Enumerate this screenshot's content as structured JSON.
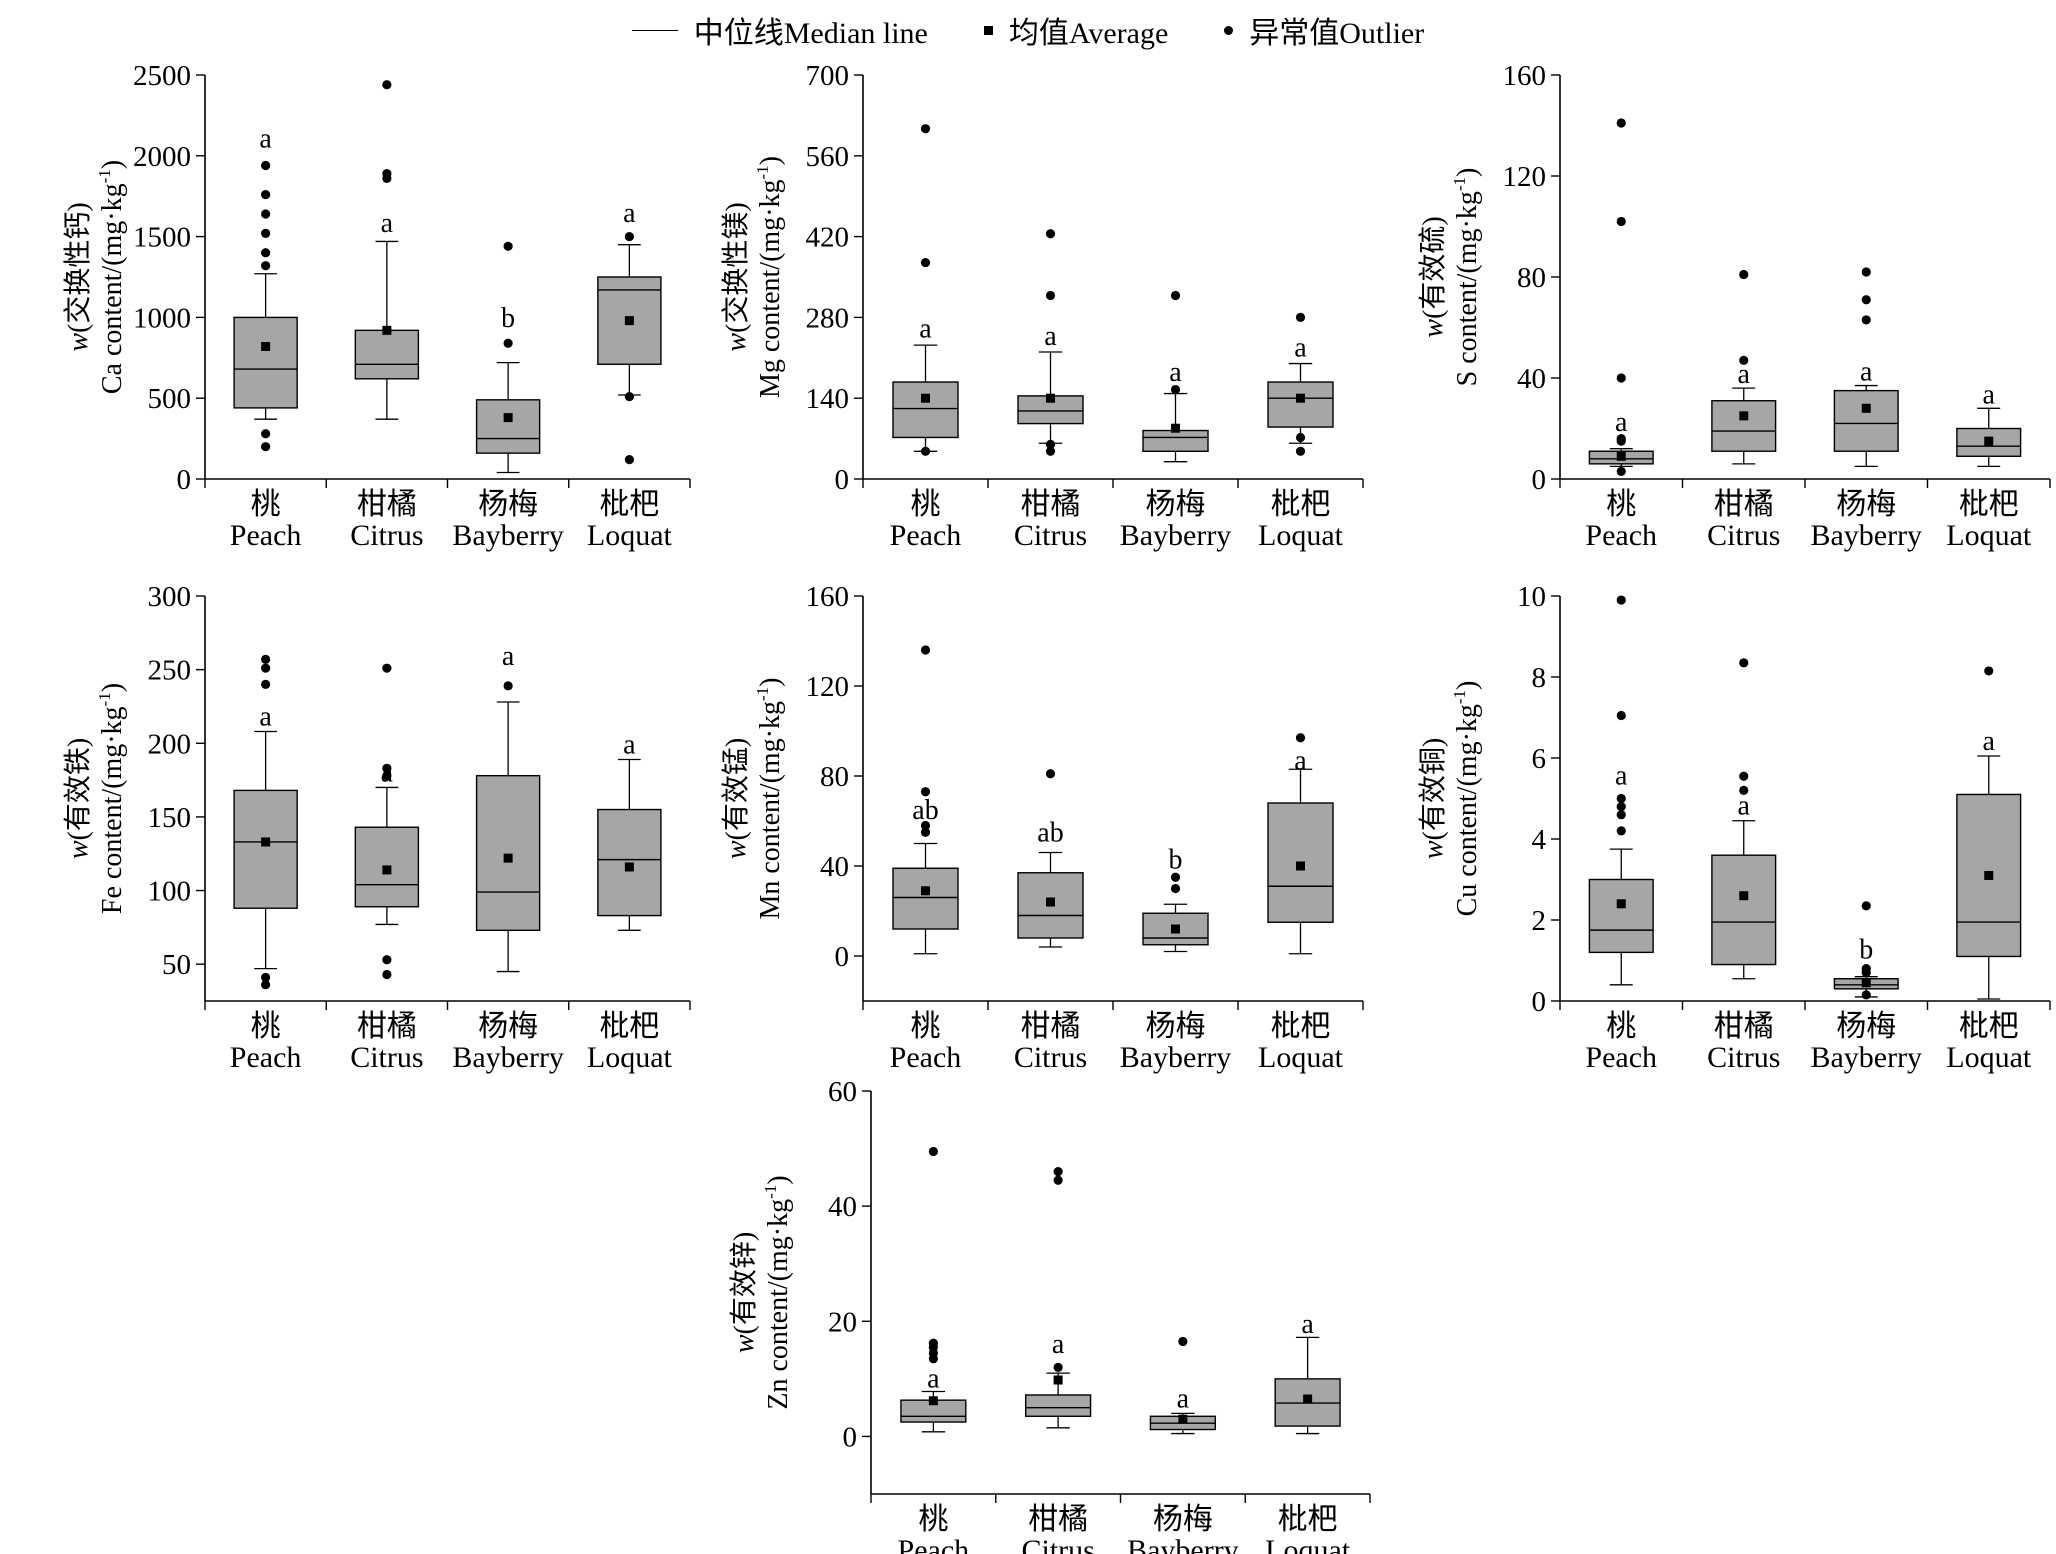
{
  "legend": {
    "median_label": "中位线Median line",
    "average_label": "均值Average",
    "outlier_label": "异常值Outlier"
  },
  "colors": {
    "box_fill": "#a6a6a6",
    "stroke": "#000000",
    "background": "#ffffff"
  },
  "chart_data": [
    {
      "type": "boxplot",
      "ylabel": "w(交换性钙) Ca content/(mg·kg⁻¹)",
      "ylabel_line1_italic": "w",
      "ylabel_line1": "(交换性钙)",
      "ylabel_line2": "Ca content/(mg·kg",
      "ylabel_sup": "-1",
      "ylabel_close": ")",
      "ylim": [
        0,
        2500
      ],
      "yticks": [
        0,
        500,
        1000,
        1500,
        2000,
        2500
      ],
      "ytick_labels": [
        "0",
        "500",
        "1000",
        "1500",
        "2000",
        "2500"
      ],
      "categories": [
        {
          "cn": "桃",
          "en": "Peach"
        },
        {
          "cn": "柑橘",
          "en": "Citrus"
        },
        {
          "cn": "杨梅",
          "en": "Bayberry"
        },
        {
          "cn": "枇杷",
          "en": "Loquat"
        }
      ],
      "boxes": [
        {
          "whisker_low": 370,
          "q1": 440,
          "median": 680,
          "q3": 1000,
          "whisker_high": 1270,
          "mean": 820,
          "outliers": [
            200,
            280,
            1320,
            1400,
            1520,
            1640,
            1760,
            1940
          ],
          "letter": "a",
          "letter_y": 2050
        },
        {
          "whisker_low": 370,
          "q1": 620,
          "median": 710,
          "q3": 920,
          "whisker_high": 1470,
          "mean": 920,
          "outliers": [
            1860,
            1890,
            2440
          ],
          "letter": "a",
          "letter_y": 1530
        },
        {
          "whisker_low": 40,
          "q1": 160,
          "median": 250,
          "q3": 490,
          "whisker_high": 720,
          "mean": 380,
          "outliers": [
            840,
            1440
          ],
          "letter": "b",
          "letter_y": 940
        },
        {
          "whisker_low": 520,
          "q1": 710,
          "median": 1170,
          "q3": 1250,
          "whisker_high": 1450,
          "mean": 980,
          "outliers": [
            120,
            510,
            1500
          ],
          "letter": "a",
          "letter_y": 1590
        }
      ]
    },
    {
      "type": "boxplot",
      "ylabel": "w(交换性镁) Mg content/(mg·kg⁻¹)",
      "ylabel_line1_italic": "w",
      "ylabel_line1": "(交换性镁)",
      "ylabel_line2": "Mg content/(mg·kg",
      "ylabel_sup": "-1",
      "ylabel_close": ")",
      "ylim": [
        0,
        700
      ],
      "yticks": [
        0,
        140,
        280,
        420,
        560,
        700
      ],
      "ytick_labels": [
        "0",
        "140",
        "280",
        "420",
        "560",
        "700"
      ],
      "categories": [
        {
          "cn": "桃",
          "en": "Peach"
        },
        {
          "cn": "柑橘",
          "en": "Citrus"
        },
        {
          "cn": "杨梅",
          "en": "Bayberry"
        },
        {
          "cn": "枇杷",
          "en": "Loquat"
        }
      ],
      "boxes": [
        {
          "whisker_low": 48,
          "q1": 72,
          "median": 122,
          "q3": 168,
          "whisker_high": 232,
          "mean": 140,
          "outliers": [
            48,
            375,
            607
          ],
          "letter": "a",
          "letter_y": 245
        },
        {
          "whisker_low": 62,
          "q1": 96,
          "median": 118,
          "q3": 144,
          "whisker_high": 220,
          "mean": 140,
          "outliers": [
            48,
            60,
            318,
            425
          ],
          "letter": "a",
          "letter_y": 232
        },
        {
          "whisker_low": 30,
          "q1": 48,
          "median": 72,
          "q3": 84,
          "whisker_high": 148,
          "mean": 88,
          "outliers": [
            155,
            318
          ],
          "letter": "a",
          "letter_y": 170
        },
        {
          "whisker_low": 62,
          "q1": 90,
          "median": 140,
          "q3": 168,
          "whisker_high": 200,
          "mean": 140,
          "outliers": [
            48,
            72,
            280
          ],
          "letter": "a",
          "letter_y": 212
        }
      ]
    },
    {
      "type": "boxplot",
      "ylabel": "w(有效硫) S content/(mg·kg⁻¹)",
      "ylabel_line1_italic": "w",
      "ylabel_line1": "(有效硫)",
      "ylabel_line2": "S content/(mg·kg",
      "ylabel_sup": "-1",
      "ylabel_close": ")",
      "ylim": [
        0,
        160
      ],
      "yticks": [
        0,
        40,
        80,
        120,
        160
      ],
      "ytick_labels": [
        "0",
        "40",
        "80",
        "120",
        "160"
      ],
      "categories": [
        {
          "cn": "桃",
          "en": "Peach"
        },
        {
          "cn": "柑橘",
          "en": "Citrus"
        },
        {
          "cn": "杨梅",
          "en": "Bayberry"
        },
        {
          "cn": "枇杷",
          "en": "Loquat"
        }
      ],
      "boxes": [
        {
          "whisker_low": 5,
          "q1": 6,
          "median": 8,
          "q3": 11,
          "whisker_high": 12,
          "mean": 9,
          "outliers": [
            3,
            15,
            16,
            40,
            102,
            141
          ],
          "letter": "a",
          "letter_y": 19
        },
        {
          "whisker_low": 6,
          "q1": 11,
          "median": 19,
          "q3": 31,
          "whisker_high": 36,
          "mean": 25,
          "outliers": [
            47,
            81
          ],
          "letter": "a",
          "letter_y": 38
        },
        {
          "whisker_low": 5,
          "q1": 11,
          "median": 22,
          "q3": 35,
          "whisker_high": 37,
          "mean": 28,
          "outliers": [
            63,
            71,
            82
          ],
          "letter": "a",
          "letter_y": 39
        },
        {
          "whisker_low": 5,
          "q1": 9,
          "median": 13,
          "q3": 20,
          "whisker_high": 28,
          "mean": 15,
          "outliers": [],
          "letter": "a",
          "letter_y": 30
        }
      ]
    },
    {
      "type": "boxplot",
      "ylabel": "w(有效铁) Fe content/(mg·kg⁻¹)",
      "ylabel_line1_italic": "w",
      "ylabel_line1": "(有效铁)",
      "ylabel_line2": "Fe content/(mg·kg",
      "ylabel_sup": "-1",
      "ylabel_close": ")",
      "ylim": [
        25,
        300
      ],
      "yticks": [
        50,
        100,
        150,
        200,
        250,
        300
      ],
      "ytick_labels": [
        "50",
        "100",
        "150",
        "200",
        "250",
        "300"
      ],
      "categories": [
        {
          "cn": "桃",
          "en": "Peach"
        },
        {
          "cn": "柑橘",
          "en": "Citrus"
        },
        {
          "cn": "杨梅",
          "en": "Bayberry"
        },
        {
          "cn": "枇杷",
          "en": "Loquat"
        }
      ],
      "boxes": [
        {
          "whisker_low": 47,
          "q1": 88,
          "median": 133,
          "q3": 168,
          "whisker_high": 208,
          "mean": 133,
          "outliers": [
            36,
            41,
            240,
            251,
            257
          ],
          "letter": "a",
          "letter_y": 212
        },
        {
          "whisker_low": 77,
          "q1": 89,
          "median": 104,
          "q3": 143,
          "whisker_high": 170,
          "mean": 114,
          "outliers": [
            43,
            53,
            178,
            183,
            251
          ],
          "letter": "a",
          "letter_y": 174
        },
        {
          "whisker_low": 45,
          "q1": 73,
          "median": 99,
          "q3": 178,
          "whisker_high": 228,
          "mean": 122,
          "outliers": [
            239
          ],
          "letter": "a",
          "letter_y": 253
        },
        {
          "whisker_low": 73,
          "q1": 83,
          "median": 121,
          "q3": 155,
          "whisker_high": 189,
          "mean": 116,
          "outliers": [],
          "letter": "a",
          "letter_y": 193
        }
      ]
    },
    {
      "type": "boxplot",
      "ylabel": "w(有效锰) Mn content/(mg·kg⁻¹)",
      "ylabel_line1_italic": "w",
      "ylabel_line1": "(有效锰)",
      "ylabel_line2": "Mn content/(mg·kg",
      "ylabel_sup": "-1",
      "ylabel_close": ")",
      "ylim": [
        -20,
        160
      ],
      "yticks": [
        0,
        40,
        80,
        120,
        160
      ],
      "ytick_labels": [
        "0",
        "40",
        "80",
        "120",
        "160"
      ],
      "categories": [
        {
          "cn": "桃",
          "en": "Peach"
        },
        {
          "cn": "柑橘",
          "en": "Citrus"
        },
        {
          "cn": "杨梅",
          "en": "Bayberry"
        },
        {
          "cn": "枇杷",
          "en": "Loquat"
        }
      ],
      "boxes": [
        {
          "whisker_low": 1,
          "q1": 12,
          "median": 26,
          "q3": 39,
          "whisker_high": 50,
          "mean": 29,
          "outliers": [
            55,
            58,
            73,
            136
          ],
          "letter": "ab",
          "letter_y": 61
        },
        {
          "whisker_low": 4,
          "q1": 8,
          "median": 18,
          "q3": 37,
          "whisker_high": 46,
          "mean": 24,
          "outliers": [
            81
          ],
          "letter": "ab",
          "letter_y": 51
        },
        {
          "whisker_low": 2,
          "q1": 5,
          "median": 8,
          "q3": 19,
          "whisker_high": 23,
          "mean": 12,
          "outliers": [
            30,
            35
          ],
          "letter": "b",
          "letter_y": 39
        },
        {
          "whisker_low": 1,
          "q1": 15,
          "median": 31,
          "q3": 68,
          "whisker_high": 83,
          "mean": 40,
          "outliers": [
            97
          ],
          "letter": "a",
          "letter_y": 83
        }
      ]
    },
    {
      "type": "boxplot",
      "ylabel": "w(有效铜) Cu content/(mg·kg⁻¹)",
      "ylabel_line1_italic": "w",
      "ylabel_line1": "(有效铜)",
      "ylabel_line2": "Cu content/(mg·kg",
      "ylabel_sup": "-1",
      "ylabel_close": ")",
      "ylim": [
        0,
        10
      ],
      "yticks": [
        0,
        2,
        4,
        6,
        8,
        10
      ],
      "ytick_labels": [
        "0",
        "2",
        "4",
        "6",
        "8",
        "10"
      ],
      "categories": [
        {
          "cn": "桃",
          "en": "Peach"
        },
        {
          "cn": "柑橘",
          "en": "Citrus"
        },
        {
          "cn": "杨梅",
          "en": "Bayberry"
        },
        {
          "cn": "枇杷",
          "en": "Loquat"
        }
      ],
      "boxes": [
        {
          "whisker_low": 0.4,
          "q1": 1.2,
          "median": 1.75,
          "q3": 3.0,
          "whisker_high": 3.75,
          "mean": 2.4,
          "outliers": [
            4.2,
            4.6,
            4.8,
            5.0,
            7.05,
            9.9
          ],
          "letter": "a",
          "letter_y": 5.35
        },
        {
          "whisker_low": 0.55,
          "q1": 0.9,
          "median": 1.95,
          "q3": 3.6,
          "whisker_high": 4.45,
          "mean": 2.6,
          "outliers": [
            5.2,
            5.55,
            8.35
          ],
          "letter": "a",
          "letter_y": 4.6
        },
        {
          "whisker_low": 0.1,
          "q1": 0.3,
          "median": 0.4,
          "q3": 0.55,
          "whisker_high": 0.6,
          "mean": 0.45,
          "outliers": [
            0.15,
            0.7,
            0.8,
            2.35
          ],
          "letter": "b",
          "letter_y": 1.05
        },
        {
          "whisker_low": 0.05,
          "q1": 1.1,
          "median": 1.95,
          "q3": 5.1,
          "whisker_high": 6.05,
          "mean": 3.1,
          "outliers": [
            8.15
          ],
          "letter": "a",
          "letter_y": 6.2
        }
      ]
    },
    {
      "type": "boxplot",
      "ylabel": "w(有效锌) Zn content/(mg·kg⁻¹)",
      "ylabel_line1_italic": "w",
      "ylabel_line1": "(有效锌)",
      "ylabel_line2": "Zn content/(mg·kg",
      "ylabel_sup": "-1",
      "ylabel_close": ")",
      "ylim": [
        -10,
        60
      ],
      "yticks": [
        0,
        20,
        40,
        60
      ],
      "ytick_labels": [
        "0",
        "20",
        "40",
        "60"
      ],
      "categories": [
        {
          "cn": "桃",
          "en": "Peach"
        },
        {
          "cn": "柑橘",
          "en": "Citrus"
        },
        {
          "cn": "杨梅",
          "en": "Bayberry"
        },
        {
          "cn": "枇杷",
          "en": "Loquat"
        }
      ],
      "boxes": [
        {
          "whisker_low": 0.8,
          "q1": 2.5,
          "median": 3.5,
          "q3": 6.3,
          "whisker_high": 7.8,
          "mean": 6.2,
          "outliers": [
            13.5,
            14.5,
            15.5,
            16.2,
            49.5
          ],
          "letter": "a",
          "letter_y": 8.5
        },
        {
          "whisker_low": 1.5,
          "q1": 3.5,
          "median": 5.0,
          "q3": 7.2,
          "whisker_high": 11.0,
          "mean": 9.8,
          "outliers": [
            12.0,
            44.5,
            46.0
          ],
          "letter": "a",
          "letter_y": 14.5
        },
        {
          "whisker_low": 0.5,
          "q1": 1.2,
          "median": 2.3,
          "q3": 3.5,
          "whisker_high": 4.0,
          "mean": 3.0,
          "outliers": [
            16.5
          ],
          "letter": "a",
          "letter_y": 5.0
        },
        {
          "whisker_low": 0.5,
          "q1": 1.8,
          "median": 5.8,
          "q3": 10.0,
          "whisker_high": 17.2,
          "mean": 6.5,
          "outliers": [],
          "letter": "a",
          "letter_y": 18.0
        }
      ]
    }
  ]
}
